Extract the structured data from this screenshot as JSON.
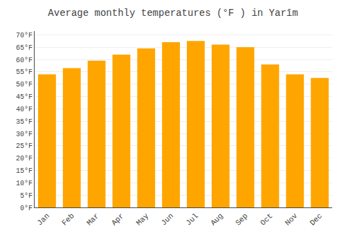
{
  "chart_data": {
    "type": "bar",
    "title": "Average monthly temperatures (°F ) in Yarīm",
    "categories": [
      "Jan",
      "Feb",
      "Mar",
      "Apr",
      "May",
      "Jun",
      "Jul",
      "Aug",
      "Sep",
      "Oct",
      "Nov",
      "Dec"
    ],
    "values": [
      54,
      56.5,
      59.5,
      62,
      64.5,
      67,
      67.5,
      66,
      65,
      58,
      54,
      52.5
    ],
    "color": "#FFA500",
    "ylim": [
      0,
      71.5
    ],
    "yticks": [
      {
        "value": 0,
        "label": "0°F"
      },
      {
        "value": 5,
        "label": "5°F"
      },
      {
        "value": 10,
        "label": "10°F"
      },
      {
        "value": 15,
        "label": "15°F"
      },
      {
        "value": 20,
        "label": "20°F"
      },
      {
        "value": 25,
        "label": "25°F"
      },
      {
        "value": 30,
        "label": "30°F"
      },
      {
        "value": 35,
        "label": "35°F"
      },
      {
        "value": 40,
        "label": "40°F"
      },
      {
        "value": 45,
        "label": "45°F"
      },
      {
        "value": 50,
        "label": "50°F"
      },
      {
        "value": 55,
        "label": "55°F"
      },
      {
        "value": 60,
        "label": "60°F"
      },
      {
        "value": 65,
        "label": "65°F"
      },
      {
        "value": 70,
        "label": "70°F"
      }
    ],
    "grid": true
  }
}
